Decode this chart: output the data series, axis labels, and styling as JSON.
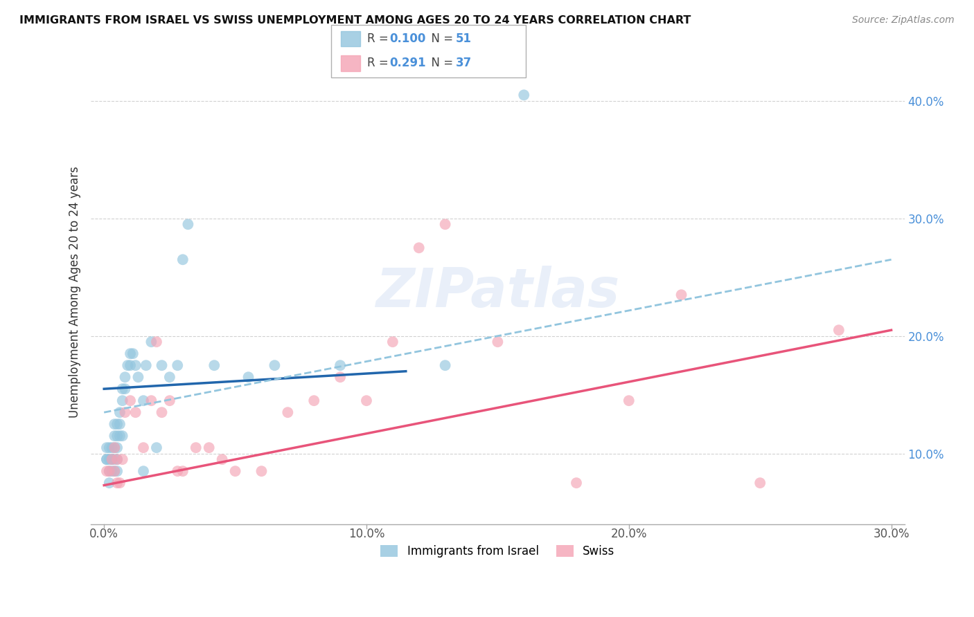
{
  "title": "IMMIGRANTS FROM ISRAEL VS SWISS UNEMPLOYMENT AMONG AGES 20 TO 24 YEARS CORRELATION CHART",
  "source": "Source: ZipAtlas.com",
  "ylabel": "Unemployment Among Ages 20 to 24 years",
  "xlim": [
    -0.005,
    0.305
  ],
  "ylim": [
    0.04,
    0.435
  ],
  "xticks": [
    0.0,
    0.1,
    0.2,
    0.3
  ],
  "xticklabels": [
    "0.0%",
    "10.0%",
    "20.0%",
    "30.0%"
  ],
  "yticks": [
    0.1,
    0.2,
    0.3,
    0.4
  ],
  "yticklabels": [
    "10.0%",
    "20.0%",
    "30.0%",
    "40.0%"
  ],
  "r1": "0.100",
  "n1": "51",
  "r2": "0.291",
  "n2": "37",
  "blue_color": "#92c5de",
  "pink_color": "#f4a3b5",
  "blue_line_color": "#2166ac",
  "pink_line_color": "#e8547a",
  "dashed_line_color": "#92c5de",
  "watermark": "ZIPatlas",
  "legend_bottom": [
    "Immigrants from Israel",
    "Swiss"
  ],
  "blue_scatter_x": [
    0.001,
    0.001,
    0.001,
    0.002,
    0.002,
    0.002,
    0.002,
    0.003,
    0.003,
    0.003,
    0.003,
    0.004,
    0.004,
    0.004,
    0.004,
    0.004,
    0.005,
    0.005,
    0.005,
    0.005,
    0.005,
    0.006,
    0.006,
    0.006,
    0.007,
    0.007,
    0.007,
    0.008,
    0.008,
    0.009,
    0.01,
    0.01,
    0.011,
    0.012,
    0.013,
    0.015,
    0.015,
    0.016,
    0.018,
    0.02,
    0.022,
    0.025,
    0.028,
    0.03,
    0.032,
    0.042,
    0.055,
    0.065,
    0.09,
    0.13,
    0.16
  ],
  "blue_scatter_y": [
    0.095,
    0.105,
    0.095,
    0.095,
    0.085,
    0.075,
    0.105,
    0.095,
    0.085,
    0.105,
    0.095,
    0.115,
    0.125,
    0.105,
    0.095,
    0.085,
    0.105,
    0.125,
    0.115,
    0.095,
    0.085,
    0.135,
    0.125,
    0.115,
    0.155,
    0.145,
    0.115,
    0.155,
    0.165,
    0.175,
    0.185,
    0.175,
    0.185,
    0.175,
    0.165,
    0.145,
    0.085,
    0.175,
    0.195,
    0.105,
    0.175,
    0.165,
    0.175,
    0.265,
    0.295,
    0.175,
    0.165,
    0.175,
    0.175,
    0.175,
    0.405
  ],
  "pink_scatter_x": [
    0.001,
    0.002,
    0.003,
    0.004,
    0.004,
    0.005,
    0.005,
    0.006,
    0.007,
    0.008,
    0.01,
    0.012,
    0.015,
    0.018,
    0.02,
    0.022,
    0.025,
    0.028,
    0.03,
    0.035,
    0.04,
    0.045,
    0.05,
    0.06,
    0.07,
    0.08,
    0.09,
    0.1,
    0.11,
    0.12,
    0.13,
    0.15,
    0.18,
    0.2,
    0.22,
    0.25,
    0.28
  ],
  "pink_scatter_y": [
    0.085,
    0.085,
    0.095,
    0.105,
    0.085,
    0.075,
    0.095,
    0.075,
    0.095,
    0.135,
    0.145,
    0.135,
    0.105,
    0.145,
    0.195,
    0.135,
    0.145,
    0.085,
    0.085,
    0.105,
    0.105,
    0.095,
    0.085,
    0.085,
    0.135,
    0.145,
    0.165,
    0.145,
    0.195,
    0.275,
    0.295,
    0.195,
    0.075,
    0.145,
    0.235,
    0.075,
    0.205
  ],
  "blue_trend_x": [
    0.0,
    0.115
  ],
  "blue_trend_y": [
    0.155,
    0.17
  ],
  "pink_trend_x": [
    0.0,
    0.3
  ],
  "pink_trend_y": [
    0.073,
    0.205
  ],
  "dashed_trend_x": [
    0.0,
    0.3
  ],
  "dashed_trend_y": [
    0.135,
    0.265
  ]
}
